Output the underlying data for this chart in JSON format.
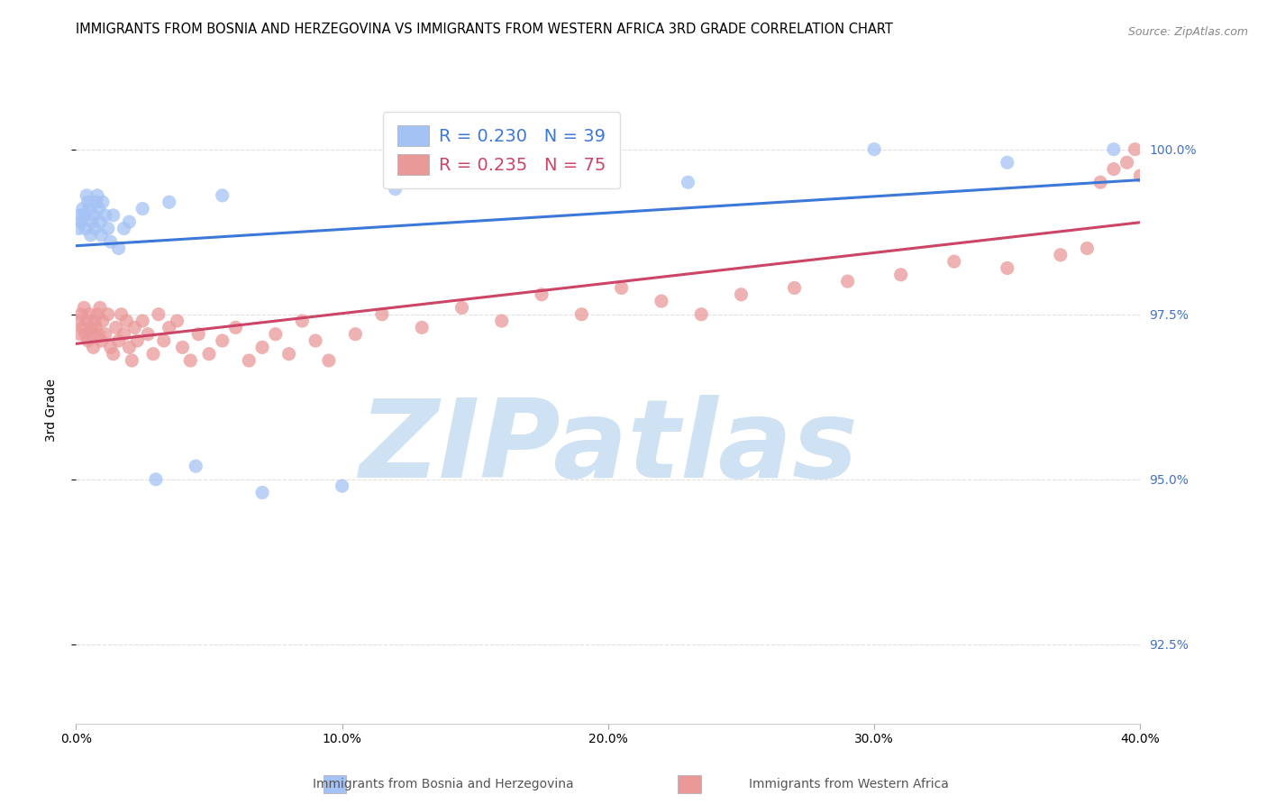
{
  "title": "IMMIGRANTS FROM BOSNIA AND HERZEGOVINA VS IMMIGRANTS FROM WESTERN AFRICA 3RD GRADE CORRELATION CHART",
  "source": "Source: ZipAtlas.com",
  "xlabel_blue": "Immigrants from Bosnia and Herzegovina",
  "xlabel_pink": "Immigrants from Western Africa",
  "ylabel": "3rd Grade",
  "xmin": 0.0,
  "xmax": 40.0,
  "ymin": 91.3,
  "ymax": 100.8,
  "yticks": [
    92.5,
    95.0,
    97.5,
    100.0
  ],
  "xticks": [
    0.0,
    10.0,
    20.0,
    30.0,
    40.0
  ],
  "blue_R": 0.23,
  "blue_N": 39,
  "pink_R": 0.235,
  "pink_N": 75,
  "blue_color": "#a4c2f4",
  "pink_color": "#ea9999",
  "blue_line_color": "#3c78d8",
  "pink_line_color": "#cc4466",
  "right_axis_color": "#4472c4",
  "watermark_zip_color": "#cfe2f3",
  "watermark_atlas_color": "#cfe2f3",
  "watermark_text": "ZIPatlas",
  "background_color": "#ffffff",
  "blue_x": [
    0.1,
    0.15,
    0.2,
    0.25,
    0.3,
    0.35,
    0.4,
    0.45,
    0.5,
    0.55,
    0.6,
    0.65,
    0.7,
    0.75,
    0.8,
    0.85,
    0.9,
    0.95,
    1.0,
    1.1,
    1.2,
    1.3,
    1.4,
    1.6,
    1.8,
    2.0,
    2.5,
    3.0,
    3.5,
    4.5,
    5.5,
    7.0,
    10.0,
    12.0,
    17.0,
    23.0,
    30.0,
    35.0,
    39.0
  ],
  "blue_y": [
    98.8,
    99.0,
    98.9,
    99.1,
    99.0,
    98.8,
    99.3,
    99.2,
    99.1,
    98.7,
    98.9,
    99.0,
    98.8,
    99.2,
    99.3,
    99.1,
    98.9,
    98.7,
    99.2,
    99.0,
    98.8,
    98.6,
    99.0,
    98.5,
    98.8,
    98.9,
    99.1,
    95.0,
    99.2,
    95.2,
    99.3,
    94.8,
    94.9,
    99.4,
    99.5,
    99.5,
    100.0,
    99.8,
    100.0
  ],
  "pink_x": [
    0.1,
    0.15,
    0.2,
    0.25,
    0.3,
    0.35,
    0.4,
    0.45,
    0.5,
    0.55,
    0.6,
    0.65,
    0.7,
    0.75,
    0.8,
    0.85,
    0.9,
    0.95,
    1.0,
    1.1,
    1.2,
    1.3,
    1.4,
    1.5,
    1.6,
    1.7,
    1.8,
    1.9,
    2.0,
    2.1,
    2.2,
    2.3,
    2.5,
    2.7,
    2.9,
    3.1,
    3.3,
    3.5,
    3.8,
    4.0,
    4.3,
    4.6,
    5.0,
    5.5,
    6.0,
    6.5,
    7.0,
    7.5,
    8.0,
    8.5,
    9.0,
    9.5,
    10.5,
    11.5,
    13.0,
    14.5,
    16.0,
    17.5,
    19.0,
    20.5,
    22.0,
    23.5,
    25.0,
    27.0,
    29.0,
    31.0,
    33.0,
    35.0,
    37.0,
    38.0,
    38.5,
    39.0,
    39.5,
    39.8,
    40.0
  ],
  "pink_y": [
    97.4,
    97.2,
    97.5,
    97.3,
    97.6,
    97.2,
    97.4,
    97.1,
    97.5,
    97.3,
    97.2,
    97.0,
    97.4,
    97.3,
    97.5,
    97.2,
    97.6,
    97.1,
    97.4,
    97.2,
    97.5,
    97.0,
    96.9,
    97.3,
    97.1,
    97.5,
    97.2,
    97.4,
    97.0,
    96.8,
    97.3,
    97.1,
    97.4,
    97.2,
    96.9,
    97.5,
    97.1,
    97.3,
    97.4,
    97.0,
    96.8,
    97.2,
    96.9,
    97.1,
    97.3,
    96.8,
    97.0,
    97.2,
    96.9,
    97.4,
    97.1,
    96.8,
    97.2,
    97.5,
    97.3,
    97.6,
    97.4,
    97.8,
    97.5,
    97.9,
    97.7,
    97.5,
    97.8,
    97.9,
    98.0,
    98.1,
    98.3,
    98.2,
    98.4,
    98.5,
    99.5,
    99.7,
    99.8,
    100.0,
    99.6
  ],
  "grid_color": "#e0e0e0",
  "title_fontsize": 10.5,
  "axis_label_fontsize": 10,
  "tick_fontsize": 10,
  "legend_fontsize": 14
}
